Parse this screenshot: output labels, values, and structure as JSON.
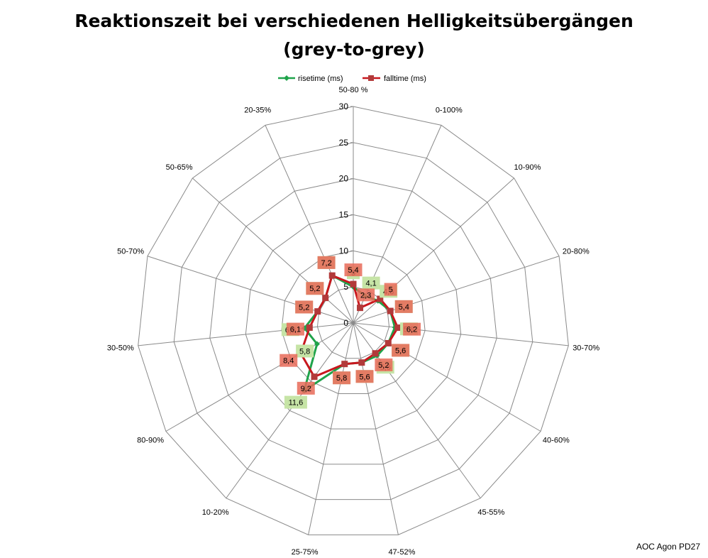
{
  "chart_data": {
    "type": "radar",
    "title_line1": "Reaktionszeit bei verschiedenen Helligkeitsübergängen",
    "title_line2": "(grey-to-grey)",
    "categories": [
      "50-80 %",
      "0-100%",
      "10-90%",
      "20-80%",
      "30-70%",
      "40-60%",
      "45-55%",
      "47-52%",
      "25-75%",
      "10-20%",
      "80-90%",
      "30-50%",
      "50-70%",
      "50-65%",
      "20-35%"
    ],
    "radial_ticks": [
      "0",
      "5",
      "10",
      "15",
      "20",
      "25",
      "30"
    ],
    "r_max": 30,
    "r_step": 5,
    "gridlines": true,
    "legend_position": "top",
    "series": [
      {
        "name": "risetime (ms)",
        "color": "#1fa34a",
        "label_bg": "#c6e4a6",
        "values": [
          5,
          4.1,
          4.6,
          5.4,
          5.8,
          5.6,
          5.6,
          5.6,
          5.8,
          11.6,
          5.8,
          6.8,
          5.2,
          5.2,
          7.2
        ],
        "labels": [
          "5",
          "4,1",
          "4,6",
          "5,4",
          "5,8",
          "5,6",
          "5,6",
          "5,6",
          "5,8",
          "11,6",
          "5,8",
          "6,8",
          "5,2",
          "5,2",
          "7,2"
        ]
      },
      {
        "name": "falltime (ms)",
        "color": "#c8171e",
        "label_bg": "#e86a58",
        "values": [
          5.4,
          2.3,
          5,
          5.4,
          6.2,
          5.6,
          5.2,
          5.6,
          5.8,
          9.2,
          8.4,
          6.1,
          5.2,
          5.2,
          7.2
        ],
        "labels": [
          "5,4",
          "2,3",
          "5",
          "5,4",
          "6,2",
          "5,6",
          "5,2",
          "5,6",
          "5,8",
          "9,2",
          "8,4",
          "6,1",
          "5,2",
          "5,2",
          "7,2"
        ]
      }
    ]
  },
  "footer": "AOC Agon PD27"
}
